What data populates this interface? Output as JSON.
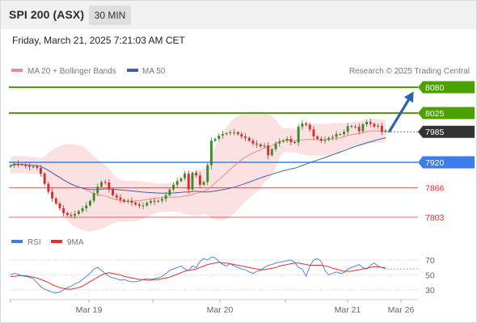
{
  "header": {
    "title": "SPI 200 (ASX)",
    "timeframe": "30 MIN"
  },
  "datetime": "Friday, March 21, 2025 7:21:03 AM CET",
  "legend": {
    "ma20": "MA 20 + Bollinger Bands",
    "ma50": "MA 50",
    "credit": "Research © 2025 Trading Central",
    "rsi": "RSI",
    "ma9": "9MA"
  },
  "colors": {
    "green": "#4ca100",
    "blue": "#3b7dea",
    "red": "#e03030",
    "dark": "#333333",
    "ma20": "#f08a8a",
    "ma50": "#3a63a8",
    "band": "#f7c9c9",
    "candle_up": "#3c8a2e",
    "candle_down": "#d03030",
    "arrow": "#2b62a8"
  },
  "chart_data": [
    {
      "type": "candlestick",
      "ylim": [
        7785,
        8098
      ],
      "x_labels": [
        "Mar 19",
        "Mar 20",
        "Mar 21",
        "Mar 26"
      ],
      "levels": [
        {
          "value": 8080,
          "label": "8080",
          "kind": "resistance"
        },
        {
          "value": 8025,
          "label": "8025",
          "kind": "resistance"
        },
        {
          "value": 7985,
          "label": "7985",
          "kind": "current"
        },
        {
          "value": 7920,
          "label": "7920",
          "kind": "pivot"
        },
        {
          "value": 7866,
          "label": "7866",
          "kind": "support"
        },
        {
          "value": 7803,
          "label": "7803",
          "kind": "support"
        }
      ],
      "arrow": {
        "from": 7985,
        "to": 8080,
        "direction": "up"
      },
      "series_close": [
        7913,
        7917,
        7916,
        7915,
        7912,
        7910,
        7911,
        7908,
        7896,
        7874,
        7857,
        7843,
        7832,
        7822,
        7812,
        7808,
        7806,
        7810,
        7816,
        7822,
        7828,
        7838,
        7854,
        7868,
        7878,
        7877,
        7862,
        7850,
        7845,
        7840,
        7836,
        7838,
        7834,
        7830,
        7827,
        7828,
        7834,
        7838,
        7836,
        7838,
        7842,
        7850,
        7862,
        7872,
        7880,
        7886,
        7896,
        7862,
        7898,
        7892,
        7872,
        7878,
        7914,
        7966,
        7970,
        7977,
        7980,
        7982,
        7984,
        7984,
        7980,
        7975,
        7972,
        7966,
        7960,
        7958,
        7954,
        7956,
        7935,
        7948,
        7960,
        7964,
        7966,
        7970,
        7963,
        7962,
        7996,
        8003,
        8000,
        7990,
        7975,
        7970,
        7966,
        7968,
        7972,
        7974,
        7980,
        7980,
        7985,
        7997,
        7996,
        7996,
        7986,
        8001,
        8006,
        8002,
        7996,
        7998,
        7985,
        7988
      ]
    },
    {
      "type": "line",
      "title": "RSI",
      "yticks": [
        70,
        50,
        30
      ],
      "ylim": [
        20,
        80
      ],
      "series": [
        {
          "name": "RSI",
          "values": [
            50,
            52,
            51,
            49,
            48,
            47,
            45,
            40,
            34,
            31,
            29,
            27,
            26,
            27,
            30,
            33,
            35,
            38,
            40,
            44,
            48,
            52,
            58,
            60,
            56,
            52,
            48,
            46,
            45,
            43,
            44,
            42,
            41,
            41,
            42,
            44,
            45,
            44,
            45,
            46,
            48,
            52,
            56,
            58,
            60,
            62,
            58,
            56,
            62,
            60,
            68,
            72,
            70,
            74,
            73,
            68,
            64,
            62,
            65,
            62,
            60,
            58,
            57,
            54,
            52,
            55,
            56,
            60,
            63,
            64,
            66,
            67,
            68,
            69,
            70,
            67,
            60,
            58,
            48,
            62,
            70,
            72,
            68,
            56,
            50,
            52,
            54,
            52,
            53,
            58,
            60,
            62,
            64,
            60,
            58,
            63,
            66,
            62,
            60,
            58
          ]
        },
        {
          "name": "9MA",
          "values": [
            48,
            48,
            49,
            49,
            49,
            48,
            47,
            46,
            44,
            42,
            40,
            37,
            35,
            33,
            32,
            31,
            31,
            32,
            33,
            35,
            38,
            41,
            44,
            47,
            50,
            52,
            53,
            52,
            51,
            50,
            48,
            47,
            46,
            45,
            44,
            44,
            43,
            43,
            44,
            44,
            45,
            46,
            47,
            49,
            51,
            53,
            55,
            56,
            57,
            58,
            60,
            62,
            64,
            65,
            66,
            67,
            66,
            66,
            65,
            64,
            63,
            62,
            61,
            60,
            59,
            58,
            57,
            57,
            58,
            59,
            60,
            62,
            63,
            64,
            65,
            66,
            66,
            65,
            64,
            63,
            63,
            63,
            63,
            62,
            61,
            59,
            58,
            56,
            55,
            55,
            55,
            56,
            57,
            58,
            59,
            60,
            61,
            61,
            60,
            60
          ]
        }
      ]
    }
  ]
}
